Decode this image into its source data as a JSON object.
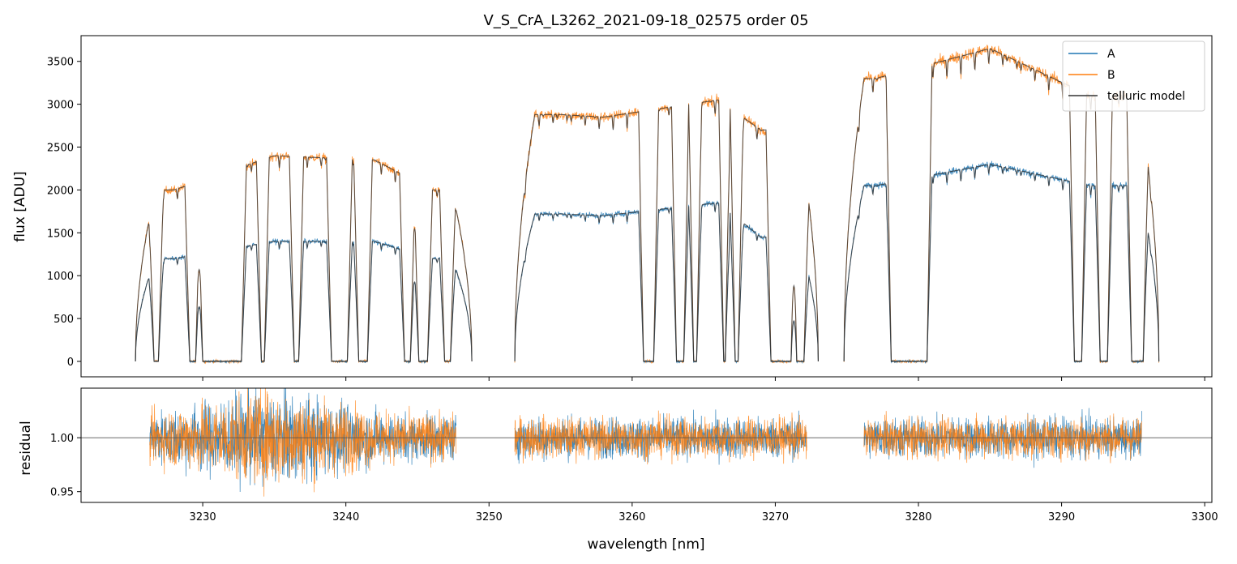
{
  "chart_data": [
    {
      "type": "line",
      "panel": "flux",
      "title": "V_S_CrA_L3262_2021-09-18_02575  order 05",
      "xlabel": "wavelength [nm]",
      "ylabel": "flux [ADU]",
      "xlim": [
        3221.5,
        3300.5
      ],
      "ylim": [
        -180,
        3800
      ],
      "x_ticks": [
        3230,
        3240,
        3250,
        3260,
        3270,
        3280,
        3290,
        3300
      ],
      "y_ticks": [
        0,
        500,
        1000,
        1500,
        2000,
        2500,
        3000,
        3500
      ],
      "y_tick_labels": [
        "0",
        "500",
        "1000",
        "1500",
        "2000",
        "2500",
        "3000",
        "3500"
      ],
      "legend": {
        "position": "top-right",
        "entries": [
          "A",
          "B",
          "telluric model"
        ]
      },
      "series": [
        {
          "name": "A",
          "color": "#1f77b4",
          "segments": [
            {
              "x_range": [
                3225.3,
                3248.8
              ],
              "continuum": 1400,
              "approx_levels": {
                "3228": 1200,
                "3235": 1400,
                "3242": 1400,
                "3246": 1200
              }
            },
            {
              "x_range": [
                3251.8,
                3273.0
              ],
              "continuum": 1750,
              "approx_levels": {
                "3255": 1720,
                "3258": 1700,
                "3266": 1850,
                "3269": 1450
              }
            },
            {
              "x_range": [
                3274.8,
                3296.8
              ],
              "continuum": 2250,
              "approx_levels": {
                "3277": 2050,
                "3285": 2300,
                "3292": 2050
              }
            }
          ]
        },
        {
          "name": "B",
          "color": "#ff7f0e",
          "segments": [
            {
              "x_range": [
                3225.3,
                3248.8
              ],
              "continuum": 2400,
              "approx_levels": {
                "3228": 2000,
                "3235": 2400,
                "3242": 2350,
                "3246": 2000
              }
            },
            {
              "x_range": [
                3251.8,
                3273.0
              ],
              "continuum": 2950,
              "approx_levels": {
                "3255": 2880,
                "3258": 2850,
                "3266": 3050,
                "3269": 2700
              }
            },
            {
              "x_range": [
                3274.8,
                3296.8
              ],
              "continuum": 3600,
              "approx_levels": {
                "3277": 3300,
                "3285": 3650,
                "3292": 3100
              }
            }
          ]
        },
        {
          "name": "telluric model",
          "color": "#333333",
          "description_free": true
        }
      ],
      "absorption_bands_nm": [
        [
          3226.5,
          3227.0
        ],
        [
          3229.0,
          3229.6
        ],
        [
          3229.9,
          3232.8
        ],
        [
          3234.0,
          3234.4
        ],
        [
          3236.3,
          3236.8
        ],
        [
          3238.9,
          3240.2
        ],
        [
          3240.8,
          3241.6
        ],
        [
          3244.0,
          3244.6
        ],
        [
          3245.0,
          3245.8
        ],
        [
          3246.8,
          3247.4
        ],
        [
          3260.7,
          3261.6
        ],
        [
          3263.0,
          3263.7
        ],
        [
          3264.2,
          3264.6
        ],
        [
          3266.3,
          3266.6
        ],
        [
          3267.1,
          3267.5
        ],
        [
          3269.6,
          3271.2
        ],
        [
          3271.4,
          3272.1
        ],
        [
          3278.0,
          3280.7
        ],
        [
          3290.8,
          3291.5
        ],
        [
          3292.6,
          3293.3
        ],
        [
          3294.8,
          3295.8
        ]
      ]
    },
    {
      "type": "line",
      "panel": "residual",
      "xlabel": "wavelength [nm]",
      "ylabel": "residual",
      "xlim": [
        3221.5,
        3300.5
      ],
      "ylim": [
        0.94,
        1.046
      ],
      "x_ticks": [
        3230,
        3240,
        3250,
        3260,
        3270,
        3280,
        3290,
        3300
      ],
      "x_tick_labels": [
        "3230",
        "3240",
        "3250",
        "3260",
        "3270",
        "3280",
        "3290",
        "3300"
      ],
      "y_ticks": [
        0.95,
        1.0
      ],
      "y_tick_labels": [
        "0.95",
        "1.00"
      ],
      "reference_line": 1.0,
      "series": [
        {
          "name": "A",
          "color": "#1f77b4"
        },
        {
          "name": "B",
          "color": "#ff7f0e"
        }
      ],
      "segments_nm": [
        [
          3226.3,
          3247.7
        ],
        [
          3251.8,
          3272.2
        ],
        [
          3276.2,
          3295.6
        ]
      ],
      "scatter_amplitude": {
        "3226": 0.03,
        "3235": 0.06,
        "3243": 0.03,
        "3255": 0.025,
        "3265": 0.025,
        "3285": 0.025
      }
    }
  ]
}
